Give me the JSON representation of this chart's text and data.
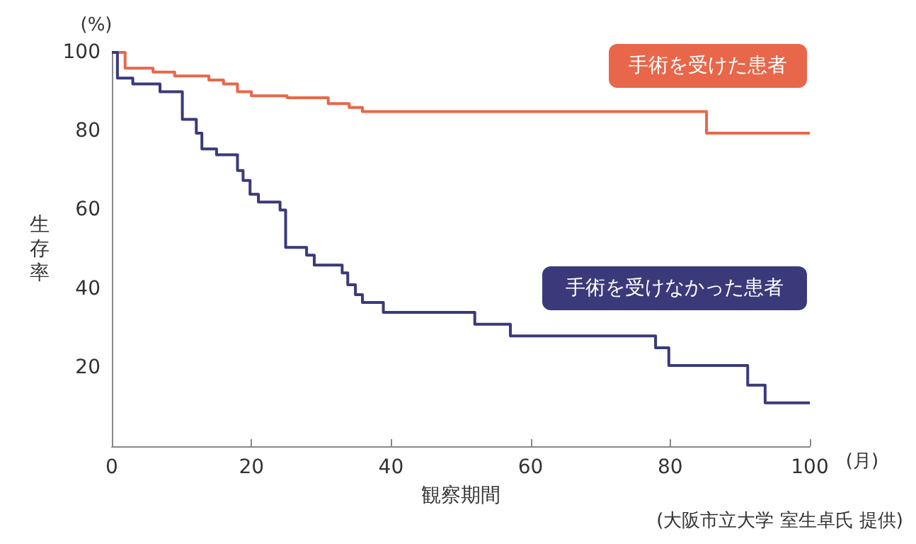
{
  "chart_data": {
    "type": "step",
    "xlabel": "観察期間",
    "ylabel": "生存率",
    "xlim": [
      0,
      100
    ],
    "xticks": [
      0,
      20,
      40,
      60,
      80,
      100
    ],
    "ylim": [
      0,
      100
    ],
    "yticks": [
      20,
      40,
      60,
      80,
      100
    ],
    "grid": false,
    "series": [
      {
        "name": "手術を受けた患者",
        "color": "#e8674a",
        "x": [
          0,
          1.9,
          5.9,
          9,
          13.9,
          16,
          18,
          20,
          25.1,
          31,
          34,
          35.9,
          85.2,
          100
        ],
        "values": [
          100,
          96,
          95,
          94,
          93,
          92,
          90,
          89,
          88.5,
          87,
          86,
          85,
          79.5,
          79.5
        ]
      },
      {
        "name": "手術を受けなかった患者",
        "color": "#3a3a7a",
        "x": [
          0,
          0.8,
          3,
          6.9,
          10.1,
          12.1,
          12.9,
          15,
          18,
          18.8,
          19.8,
          21,
          24.1,
          24.9,
          27.9,
          29,
          33,
          33.8,
          34.9,
          35.9,
          38.9,
          52,
          57.1,
          77.9,
          79.8,
          91.1,
          93.6,
          100
        ],
        "values": [
          100,
          93.5,
          92,
          90,
          83,
          79.5,
          75.5,
          74,
          70,
          67.5,
          64,
          62,
          60,
          50.5,
          48.5,
          46,
          44,
          41,
          38.5,
          36.5,
          34,
          31,
          28,
          25,
          20.5,
          15.5,
          11,
          11
        ]
      }
    ],
    "annotations": [
      "(%)",
      "(月)",
      "(大阪市立大学 室生卓氏 提供)"
    ]
  }
}
